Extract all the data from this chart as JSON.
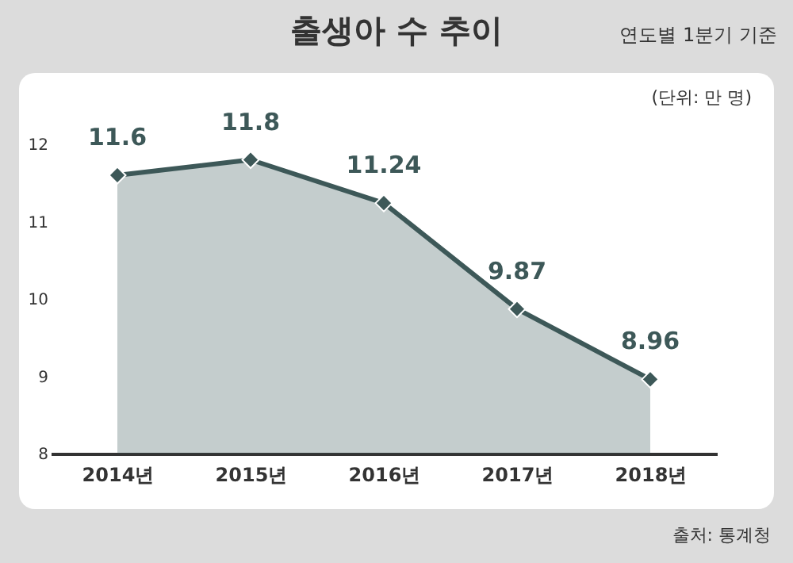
{
  "chart_data": {
    "type": "area",
    "title": "출생아 수 추이",
    "subtitle": "연도별 1분기 기준",
    "annotations": [
      "(단위: 만 명)",
      "출처: 통계청"
    ],
    "categories": [
      "2014년",
      "2015년",
      "2016년",
      "2017년",
      "2018년"
    ],
    "series": [
      {
        "color": "#3d5858",
        "values": [
          11.6,
          11.8,
          11.24,
          9.87,
          8.96
        ]
      }
    ],
    "ylim": [
      8,
      12
    ],
    "yticks": [
      8,
      9,
      10,
      11,
      12
    ],
    "data_labels": true,
    "marker": "diamond"
  }
}
